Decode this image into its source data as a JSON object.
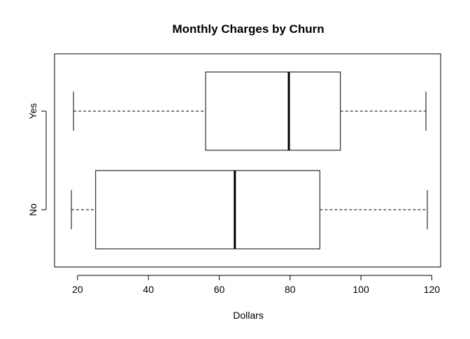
{
  "chart_data": {
    "type": "boxplot",
    "title": "Monthly Charges by Churn",
    "xlabel": "Dollars",
    "ylabel": "",
    "orientation": "horizontal",
    "xlim": [
      13.5,
      122.5
    ],
    "xticks": [
      20,
      40,
      60,
      80,
      100,
      120
    ],
    "categories": [
      "No",
      "Yes"
    ],
    "series": [
      {
        "category": "No",
        "min": 18.25,
        "q1": 25.1,
        "median": 64.4,
        "q3": 88.4,
        "max": 118.75
      },
      {
        "category": "Yes",
        "min": 18.85,
        "q1": 56.15,
        "median": 79.65,
        "q3": 94.2,
        "max": 118.35
      }
    ],
    "grid": false,
    "legend": "none"
  }
}
